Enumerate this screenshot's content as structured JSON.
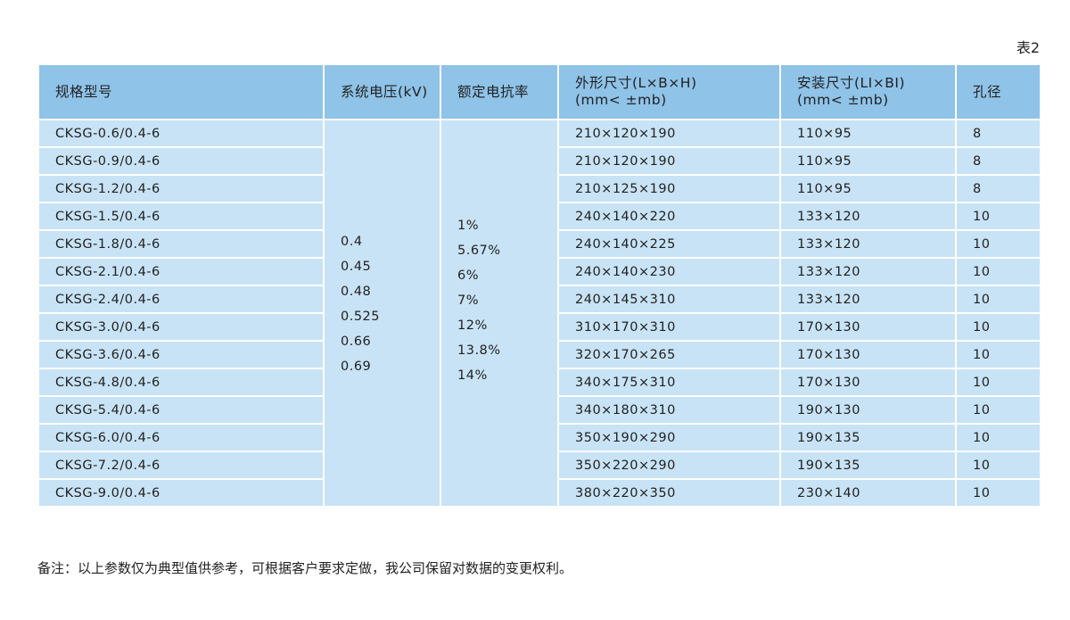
{
  "caption": "表2",
  "headers": [
    "规格型号",
    "系统电压(kV)",
    "额定电抗率",
    "外形尺寸(L×B×H)\n(mm< ±mb)",
    "安装尺寸(LI×BI)\n(mm< ±mb)",
    "孔径"
  ],
  "voltages": [
    "0.4",
    "0.45",
    "0.48",
    "0.525",
    "0.66",
    "0.69"
  ],
  "ratios": [
    "1%",
    "5.67%",
    "6%",
    "7%",
    "12%",
    "13.8%",
    "14%"
  ],
  "rows": [
    [
      "CKSG-0.6/0.4-6",
      "210×120×190",
      "110×95",
      "8"
    ],
    [
      "CKSG-0.9/0.4-6",
      "210×120×190",
      "110×95",
      "8"
    ],
    [
      "CKSG-1.2/0.4-6",
      "210×125×190",
      "110×95",
      "8"
    ],
    [
      "CKSG-1.5/0.4-6",
      "240×140×220",
      "133×120",
      "10"
    ],
    [
      "CKSG-1.8/0.4-6",
      "240×140×225",
      "133×120",
      "10"
    ],
    [
      "CKSG-2.1/0.4-6",
      "240×140×230",
      "133×120",
      "10"
    ],
    [
      "CKSG-2.4/0.4-6",
      "240×145×310",
      "133×120",
      "10"
    ],
    [
      "CKSG-3.0/0.4-6",
      "310×170×310",
      "170×130",
      "10"
    ],
    [
      "CKSG-3.6/0.4-6",
      "320×170×265",
      "170×130",
      "10"
    ],
    [
      "CKSG-4.8/0.4-6",
      "340×175×310",
      "170×130",
      "10"
    ],
    [
      "CKSG-5.4/0.4-6",
      "340×180×310",
      "190×130",
      "10"
    ],
    [
      "CKSG-6.0/0.4-6",
      "350×190×290",
      "190×135",
      "10"
    ],
    [
      "CKSG-7.2/0.4-6",
      "350×220×290",
      "190×135",
      "10"
    ],
    [
      "CKSG-9.0/0.4-6",
      "380×220×350",
      "230×140",
      "10"
    ]
  ],
  "note": "备注：以上参数仅为典型值供参考，可根据客户要求定做，我公司保留对数据的变更权利。",
  "colors": {
    "header": "#8fc3e8",
    "body": "#c8e3f5"
  }
}
